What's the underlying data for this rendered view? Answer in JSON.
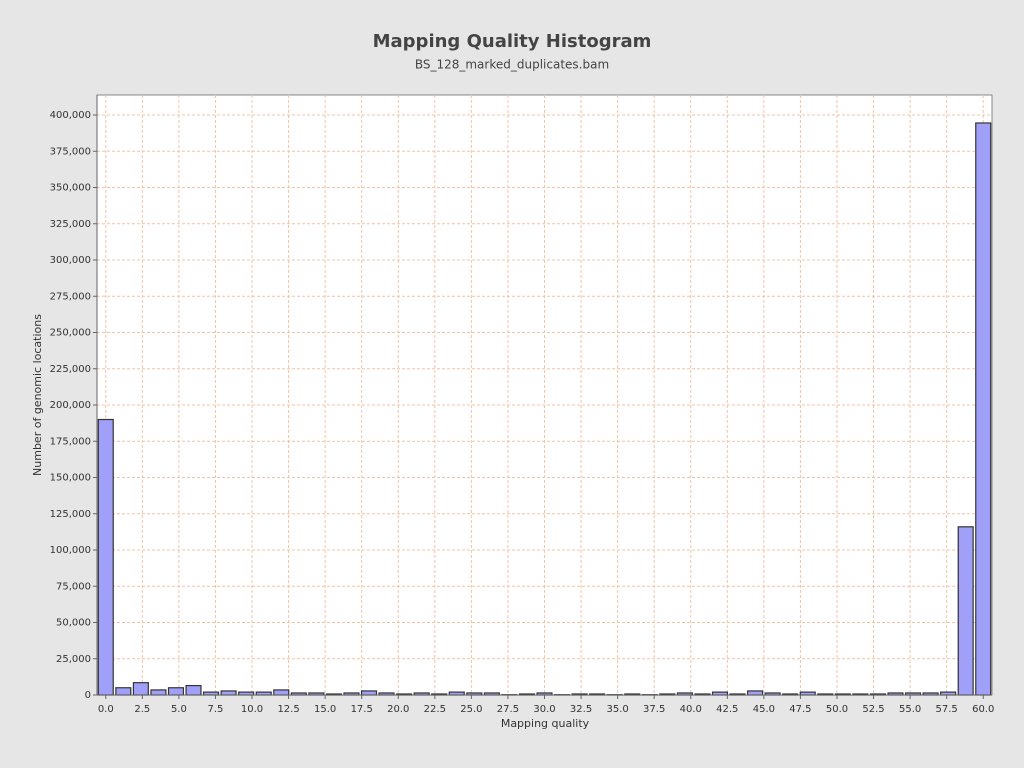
{
  "chart_data": {
    "type": "bar",
    "title": "Mapping Quality Histogram",
    "subtitle": "BS_128_marked_duplicates.bam",
    "x_label": "Mapping quality",
    "y_label": "Number of genomic locations",
    "color": "#a0a0f8",
    "grid": true,
    "x": [
      0,
      1.2,
      2.4,
      3.6,
      4.8,
      6,
      7.2,
      8.4,
      9.6,
      10.8,
      12,
      13.2,
      14.4,
      15.6,
      16.8,
      18,
      19.2,
      20.4,
      21.6,
      22.8,
      24,
      25.2,
      26.4,
      27.6,
      28.8,
      30,
      31.2,
      32.4,
      33.6,
      34.8,
      36,
      37.2,
      38.4,
      39.6,
      40.8,
      42,
      43.2,
      44.4,
      45.6,
      46.8,
      48,
      49.2,
      50.4,
      51.6,
      52.8,
      54,
      55.2,
      56.4,
      57.6,
      58.8,
      60
    ],
    "values": [
      190000,
      5000,
      8500,
      3500,
      5000,
      6500,
      2000,
      2800,
      2000,
      2000,
      3500,
      1400,
      1400,
      700,
      1400,
      2800,
      1400,
      700,
      1400,
      700,
      2000,
      1400,
      1400,
      200,
      700,
      1400,
      200,
      700,
      700,
      200,
      700,
      200,
      700,
      1400,
      700,
      2000,
      700,
      2800,
      1400,
      700,
      2000,
      700,
      700,
      700,
      700,
      1400,
      1400,
      1400,
      2000,
      116000,
      394500
    ],
    "xlim": [
      -0.6,
      60.6
    ],
    "ylim": [
      0,
      413800
    ],
    "xticks": [
      {
        "value": 0,
        "label": "0.0"
      },
      2.5,
      {
        "value": 5,
        "label": "5.0"
      },
      7.5,
      {
        "value": 10,
        "label": "10.0"
      },
      12.5,
      {
        "value": 15,
        "label": "15.0"
      },
      17.5,
      {
        "value": 20,
        "label": "20.0"
      },
      22.5,
      {
        "value": 25,
        "label": "25.0"
      },
      27.5,
      {
        "value": 30,
        "label": "30.0"
      },
      32.5,
      {
        "value": 35,
        "label": "35.0"
      },
      37.5,
      {
        "value": 40,
        "label": "40.0"
      },
      42.5,
      {
        "value": 45,
        "label": "45.0"
      },
      47.5,
      {
        "value": 50,
        "label": "50.0"
      },
      52.5,
      {
        "value": 55,
        "label": "55.0"
      },
      57.5,
      {
        "value": 60,
        "label": "60.0"
      }
    ],
    "yticks": [
      0,
      {
        "value": 25000,
        "label": "25,000"
      },
      {
        "value": 50000,
        "label": "50,000"
      },
      {
        "value": 75000,
        "label": "75,000"
      },
      {
        "value": 100000,
        "label": "100,000"
      },
      {
        "value": 125000,
        "label": "125,000"
      },
      {
        "value": 150000,
        "label": "150,000"
      },
      {
        "value": 175000,
        "label": "175,000"
      },
      {
        "value": 200000,
        "label": "200,000"
      },
      {
        "value": 225000,
        "label": "225,000"
      },
      {
        "value": 250000,
        "label": "250,000"
      },
      {
        "value": 275000,
        "label": "275,000"
      },
      {
        "value": 300000,
        "label": "300,000"
      },
      {
        "value": 325000,
        "label": "325,000"
      },
      {
        "value": 350000,
        "label": "350,000"
      },
      {
        "value": 375000,
        "label": "375,000"
      },
      {
        "value": 400000,
        "label": "400,000"
      }
    ]
  }
}
